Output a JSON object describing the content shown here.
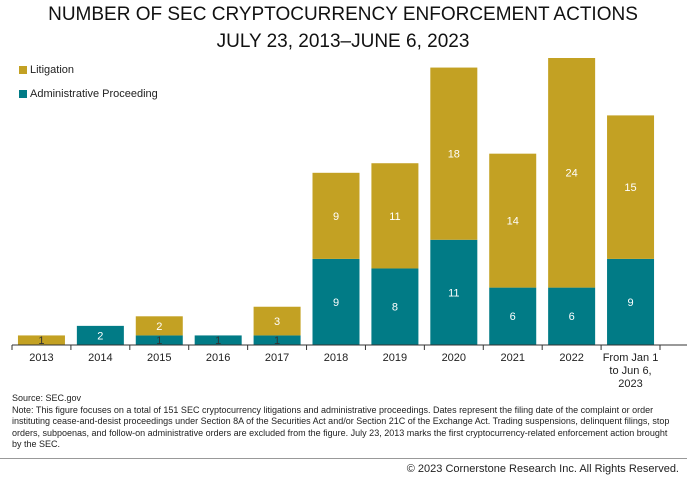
{
  "chart_data": {
    "type": "stacked-bar",
    "title": "NUMBER OF SEC CRYPTOCURRENCY ENFORCEMENT ACTIONS",
    "subtitle": "JULY 23, 2013–JUNE 6, 2023",
    "categories": [
      "2013",
      "2014",
      "2015",
      "2016",
      "2017",
      "2018",
      "2019",
      "2020",
      "2021",
      "2022",
      "From Jan 1 to Jun 6, 2023"
    ],
    "series": [
      {
        "name": "Administrative Proceeding",
        "color": "#017b86",
        "values": [
          null,
          2,
          1,
          1,
          1,
          9,
          8,
          11,
          6,
          6,
          9
        ]
      },
      {
        "name": "Litigation",
        "color": "#c3a123",
        "values": [
          1,
          null,
          2,
          null,
          3,
          9,
          11,
          18,
          14,
          24,
          15
        ]
      }
    ],
    "legend": "top-left",
    "source": "Source: SEC.gov",
    "note": "Note: This figure focuses on a total of 151 SEC cryptocurrency litigations and administrative proceedings. Dates represent the filing date of the complaint or order instituting cease-and-desist proceedings under Section 8A of the Securities Act and/or Section 21C of the Exchange Act. Trading suspensions, delinquent filings, stop orders, subpoenas, and follow-on administrative orders are excluded from the figure. July 23, 2013 marks the first cryptocurrency-related enforcement action brought by the SEC.",
    "copyright": "© 2023 Cornerstone Research Inc. All Rights Reserved."
  }
}
